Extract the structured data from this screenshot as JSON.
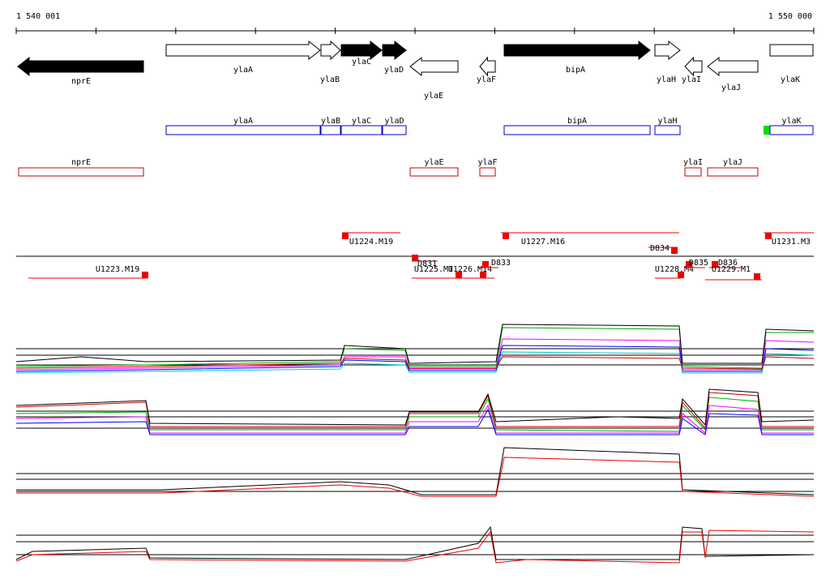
{
  "header": {
    "start": "1 540 001",
    "end": "1 550 000"
  },
  "genes": [
    "nprE",
    "ylaA",
    "ylaB",
    "ylaC",
    "ylaD",
    "ylaE",
    "ylaF",
    "bipA",
    "ylaH",
    "ylaI",
    "ylaJ",
    "ylaK"
  ],
  "blue_row": [
    "ylaA",
    "ylaB",
    "ylaC",
    "ylaD",
    "bipA",
    "ylaH",
    "ylaK"
  ],
  "red_row": [
    "nprE",
    "ylaE",
    "ylaF",
    "ylaI",
    "ylaJ"
  ],
  "units": [
    "U1224.M19",
    "U1227.M16",
    "D834",
    "U1231.M3",
    "U1223.M19",
    "D831",
    "U1225.M1",
    "U1226.M14",
    "D833",
    "U1228.M4",
    "D835",
    "D836",
    "U1229.M1"
  ]
}
